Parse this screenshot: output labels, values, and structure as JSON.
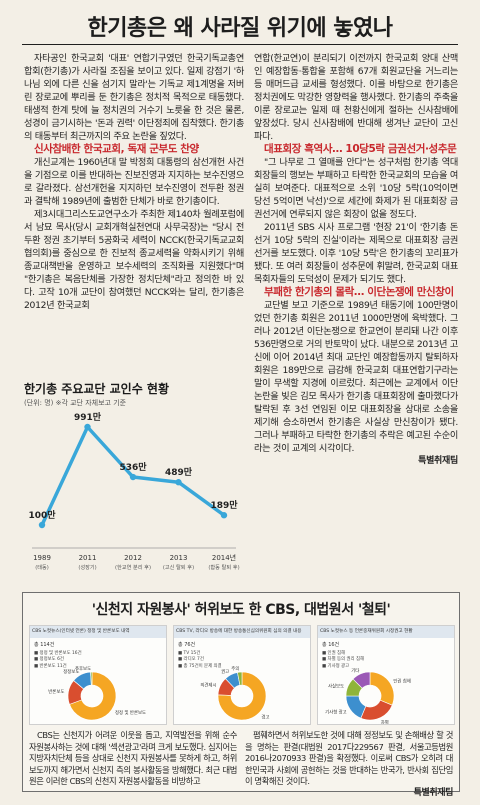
{
  "headline": "한기총은 왜 사라질 위기에 놓였나",
  "left_column": {
    "intro": "자타공인 한국교회 '대표' 연합기구였던 한국기독교총연합회(한기총)가 사라질 조짐을 보이고 있다. 일제 강점기 '하나님 외에 다른 신을 섬기지 말라'는 기독교 제1계명을 저버린 장로교에 뿌리를 둔 한기총은 정치적 목적으로 태동했다. 태생적 한계 탓에 늘 정치권의 거수기 노릇을 한 것은 물론, 성경이 금기시하는 '돈과 권력' 이단정죄에 집착했다. 한기총의 태동부터 최근까지의 주요 논란을 짚었다.",
    "section1_title": "신사참배한 한국교회, 독재 군부도 찬양",
    "section1_p1": "개신교계는 1960년대 말 박정희 대통령의 삼선개헌 사건을 기점으로 이를 반대하는 진보진영과 지지하는 보수진영으로 갈라졌다. 삼선개헌을 지지하던 보수진영이 전두환 정권과 결탁해 1989년에 출범한 단체가 바로 한기총이다.",
    "section1_p2": "제3시대그리스도교연구소가 주최한 제140차 월례포럼에서 남묘 목사(당시 교회개혁실천연대 사무국장)는 \"당시 전두환 정권 초기부터 5공화국 세력이 NCCK(한국기독교교회협의회)를 중심으로 한 진보적 종교세력을 약화시키기 위해 종교대책반을 운영하고 보수세력의 조직화를 지원했다\"며 \"한기총은 복음단체를 가장한 정치단체\"라고 정의한 바 있다. 고작 10개 교단이 참여했던 NCCK와는 달리, 한기총은 2012년 한국교회"
  },
  "chart_data": {
    "type": "line",
    "title": "한기총 주요교단 교인수 현황",
    "subtitle": "(단위: 명) ※각 교단 자체보고 기준",
    "categories": [
      "1989",
      "2011",
      "2012",
      "2013",
      "2014년"
    ],
    "category_notes": [
      "(태동)",
      "(성장기)",
      "(한교연 분리 후)",
      "(고신 탈퇴 후)",
      "(합동 탈퇴 후)"
    ],
    "values": [
      100,
      991,
      536,
      489,
      189
    ],
    "value_labels": [
      "100만",
      "991만",
      "536만",
      "489만",
      "189만"
    ],
    "unit": "만",
    "ylim": [
      0,
      1000
    ],
    "grid": false,
    "line_color": "#39a7d9"
  },
  "right_column": {
    "intro": "연합(한교연)이 분리되기 이전까지 한국교회 양대 산맥인 예장합동·통합을 포함해 67개 회원교단을 거느리는 등 매머드급 교세를 형성했다. 이를 바탕으로 한기총은 정치권에도 막강한 영향력을 행사했다. 한기총의 주축을 이룬 장로교는 일제 때 천황신에게 절하는 신사참배에 앞장섰다. 당시 신사참배에 반대해 생겨난 교단이 고신파다.",
    "section2_title": "대표회장 흑역사… 10당5락 금권선거·성추문",
    "section2_p1": "\"그 나무로 그 열매를 안다\"는 성구처럼 한기총 역대 회장들의 행보는 부패하고 타락한 한국교회의 모습을 여실히 보여준다. 대표적으로 소위 '10당 5락(10억이면 당선 5억이면 낙선)'으로 세간에 화제가 된 대표회장 금권선거에 연루되지 않은 회장이 없을 정도다.",
    "section2_p2": "2011년 SBS 시사 프로그램 '현장 21'이 '한기총 돈선거 10당 5락의 진실'이라는 제목으로 대표회장 금권선거를 보도했다. 이후 '10당 5락'은 한기총의 꼬리표가 됐다. 또 여러 회장들이 성추문에 휘말려, 한국교회 대표 목회자들의 도덕성이 문제가 되기도 했다.",
    "section3_title": "부패한 한기총의 몰락… 이단논쟁에 만신창이",
    "section3_p1": "교단별 보고 기준으로 1989년 태동기에 100만명이었던 한기총 회원은 2011년 1000만명에 육박했다. 그러나 2012년 이단논쟁으로 한교연이 분리돼 나간 이후 536만명으로 거의 반토막이 났다. 내분으로 2013년 고신에 이어 2014년 최대 교단인 예장합동까지 탈퇴하자 회원은 189만으로 급감해 한국교회 대표연합기구라는 말이 무색할 지경에 이르렀다. 최근에는 교계에서 이단논란을 빚은 김모 목사가 한기총 대표회장에 출마했다가 탈락된 후 3선 연임된 이모 대표회장을 상대로 소송을 제기해 승소하면서 한기총은 사실상 만신창이가 됐다. 그러나 부패하고 타락한 한기총의 추락은 예고된 수순이라는 것이 교계의 시각이다.",
    "byline": "특별취재팀"
  },
  "box": {
    "title": "'신천지 자원봉사' 허위보도 한 CBS, 대법원서 '철퇴'",
    "panel1": {
      "header": "CBS 노컷뉴스(인터넷 언론) 정정 및 반론보도 내역",
      "total": "총 114건",
      "rows": [
        "정정 및 반론보도 16건",
        "정정보도 6건",
        "반론보도 11건"
      ],
      "donut": [
        {
          "label": "정정 및 반론보도",
          "value": 70
        },
        {
          "label": "반론보도",
          "value": 17
        },
        {
          "label": "정정보도",
          "value": 13
        },
        {
          "label": "추후보도",
          "value": 1
        }
      ]
    },
    "panel2": {
      "header": "CBS TV, 라디오 방송에 대한 방송통신심의위원회 심의 의결 내용",
      "total": "총 76건",
      "rows": [
        "TV 15건",
        "라디오 7건",
        "총 75건이 문제 의결",
        "경고 50건",
        "의견제시 8건",
        "권고 6건",
        "주의 2건"
      ],
      "donut": [
        {
          "label": "경고",
          "value": 50
        },
        {
          "label": "의견제시",
          "value": 8
        },
        {
          "label": "권고",
          "value": 6
        },
        {
          "label": "주의",
          "value": 2
        }
      ]
    },
    "panel3": {
      "header": "CBS 노컷뉴스 등 언론중재위원회 시정권고 현황",
      "total": "총 16건",
      "rows": [
        "인권 침해",
        "차별 등의 권리 침해",
        "기사형 광고",
        "사실 보도",
        "기타",
        "2016년 10월 기준"
      ],
      "donut": [
        {
          "label": "인권 침해",
          "value": 5
        },
        {
          "label": "차별",
          "value": 4
        },
        {
          "label": "기사형 광고",
          "value": 3
        },
        {
          "label": "사실보도",
          "value": 2
        },
        {
          "label": "기타",
          "value": 2
        }
      ]
    },
    "left_text": "CBS는 신천지가 어려운 이웃을 돕고, 지역발전을 위해 순수 자원봉사하는 것에 대해 '섹션광고'라며 크게 보도했다. 심지어는 지방자치단체 등을 상대로 신천지 자원봉사를 못하게 하고, 허위보도까지 해가면서 신천지 측의 봉사활동을 방해했다. 최근 대법원은 이러한 CBS의 신천지 자원봉사활동을 비방하고",
    "right_text": "폄훼하면서 허위보도한 것에 대해 정정보도 및 손해배상 할 것을 명하는 판결(대법원 2017다229567 판결, 서울고등법원 2016나2070933 판결)을 확정했다. 이로써 CBS가 오히려 대한민국과 사회에 공헌하는 것을 반대하는 반국가, 반사회 집단임이 명확해진 것이다.",
    "byline": "특별취재팀"
  }
}
